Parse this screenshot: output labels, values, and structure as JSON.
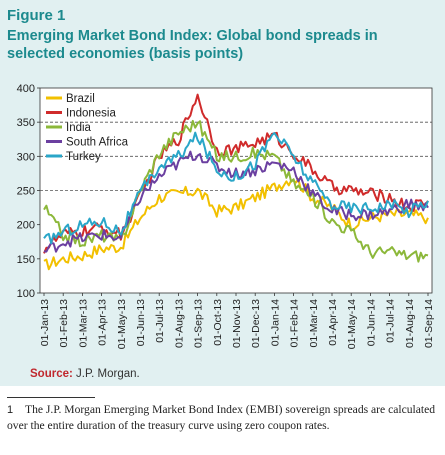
{
  "figure": {
    "label": "Figure 1",
    "title": "Emerging Market Bond Index: Global bond spreads in selected economies (basis points)",
    "source_label": "Source:",
    "source_text": "J.P. Morgan."
  },
  "footnote": {
    "number": "1",
    "text": "The J.P. Morgan Emerging Market Bond Index (EMBI) sovereign spreads are calculated over the entire duration of the treasury curve using zero coupon rates."
  },
  "chart_data": {
    "type": "line",
    "title": "Emerging Market Bond Index: Global bond spreads in selected economies (basis points)",
    "xlabel": "",
    "ylabel": "",
    "ylim": [
      100,
      400
    ],
    "yticks": [
      100,
      150,
      200,
      250,
      300,
      350,
      400
    ],
    "grid": "dashed horizontal at 250, 300, 350",
    "legend_position": "top-left",
    "x": [
      "01-Jan-13",
      "01-Feb-13",
      "01-Mar-13",
      "01-Apr-13",
      "01-May-13",
      "01-Jun-13",
      "01-Jul-13",
      "01-Aug-13",
      "01-Sep-13",
      "01-Oct-13",
      "01-Nov-13",
      "01-Dec-13",
      "01-Jan-14",
      "01-Feb-14",
      "01-Mar-14",
      "01-Apr-14",
      "01-May-14",
      "01-Jun-14",
      "01-Jul-14",
      "01-Aug-14",
      "01-Sep-14"
    ],
    "series": [
      {
        "name": "Brazil",
        "color": "#f2c000",
        "values": [
          140,
          150,
          155,
          165,
          168,
          210,
          240,
          245,
          250,
          220,
          225,
          240,
          255,
          270,
          240,
          225,
          200,
          210,
          215,
          215,
          210
        ]
      },
      {
        "name": "Indonesia",
        "color": "#d02b2b",
        "values": [
          165,
          185,
          190,
          195,
          185,
          240,
          300,
          325,
          390,
          310,
          310,
          320,
          330,
          305,
          280,
          255,
          250,
          245,
          240,
          225,
          235
        ]
      },
      {
        "name": "India",
        "color": "#8cb83a",
        "values": [
          225,
          185,
          175,
          185,
          175,
          250,
          305,
          335,
          350,
          300,
          300,
          305,
          300,
          260,
          240,
          205,
          190,
          160,
          160,
          155,
          155
        ]
      },
      {
        "name": "South Africa",
        "color": "#6b3fa0",
        "values": [
          160,
          175,
          180,
          185,
          180,
          240,
          270,
          290,
          305,
          285,
          275,
          280,
          290,
          280,
          245,
          220,
          215,
          215,
          220,
          230,
          225
        ]
      },
      {
        "name": "Turkey",
        "color": "#2aa6c8",
        "values": [
          175,
          190,
          200,
          205,
          190,
          245,
          285,
          300,
          330,
          280,
          270,
          290,
          335,
          300,
          260,
          230,
          225,
          225,
          230,
          220,
          235
        ]
      }
    ]
  }
}
